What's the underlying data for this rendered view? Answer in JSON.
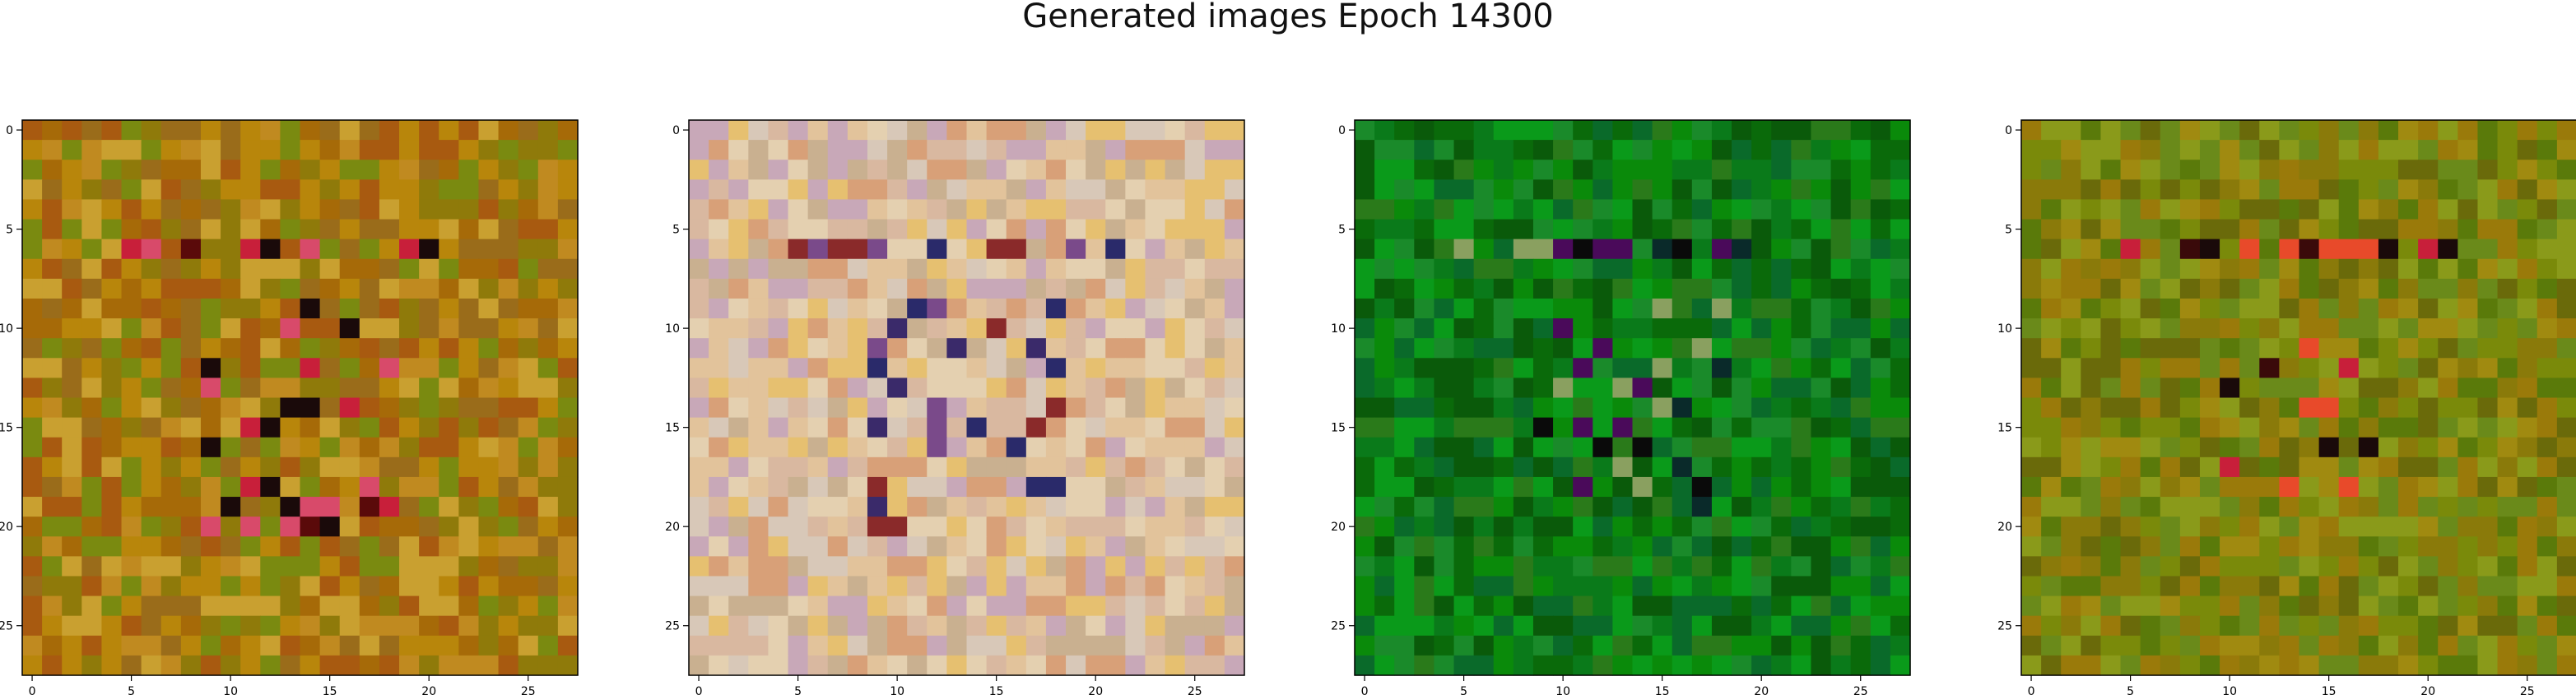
{
  "title": "Generated images Epoch 14300",
  "axes": {
    "tick_values": [
      0,
      5,
      10,
      15,
      20,
      25
    ],
    "grid_size": 28
  },
  "panels": [
    {
      "name": "generated-image-1",
      "palette": "warm",
      "colors": [
        "#8f7a0a",
        "#a66a08",
        "#b8860b",
        "#9a6c1a",
        "#c08a20",
        "#7a8a10",
        "#a85a10",
        "#c9a030"
      ],
      "accents": [
        "#5a0a0a",
        "#d84a6a",
        "#c81f3a",
        "#1a0a0a"
      ]
    },
    {
      "name": "generated-image-2",
      "palette": "pastel",
      "colors": [
        "#e2c39b",
        "#d9b8a0",
        "#c9b090",
        "#e6c070",
        "#d8c8b8",
        "#c8a8b8",
        "#d8a078",
        "#e4d0b0"
      ],
      "accents": [
        "#3a2a6a",
        "#8a2a2a",
        "#7a4a8a",
        "#2a2a6a"
      ]
    },
    {
      "name": "generated-image-3",
      "palette": "green",
      "colors": [
        "#0a6a0a",
        "#0a7a1a",
        "#0a8a0a",
        "#0a5a0a",
        "#1a8a2a",
        "#0a9a1a",
        "#2a7a1a",
        "#0a6a2a"
      ],
      "accents": [
        "#0a0a0a",
        "#4a0a5a",
        "#0a2a2a",
        "#8aa060"
      ]
    },
    {
      "name": "generated-image-4",
      "palette": "olive",
      "colors": [
        "#7a8a0a",
        "#8a7a0a",
        "#6a8a1a",
        "#9a7a0a",
        "#5a7a0a",
        "#8a9a1a",
        "#a08a10",
        "#6a6a0a"
      ],
      "accents": [
        "#3a0a0a",
        "#c81f3a",
        "#e84a2a",
        "#1a0a0a"
      ]
    }
  ]
}
